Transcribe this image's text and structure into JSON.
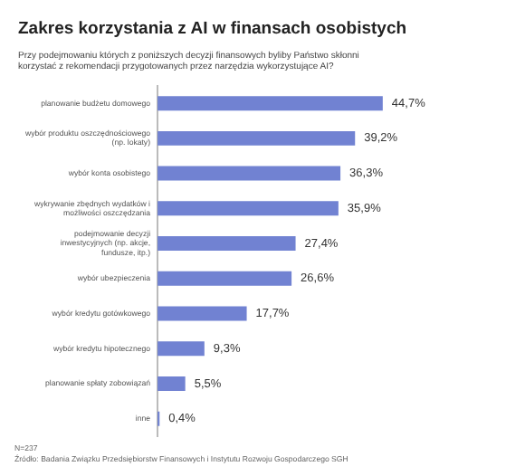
{
  "chart_data": {
    "type": "bar",
    "orientation": "horizontal",
    "title": "Zakres korzystania z AI w finansach osobistych",
    "subtitle": "Przy podejmowaniu których z poniższych decyzji finansowych byliby Państwo skłonni korzystać z rekomendacji przygotowanych przez narzędzia wykorzystujące AI?",
    "categories": [
      "planowanie budżetu domowego",
      "wybór produktu oszczędnościowego (np. lokaty)",
      "wybór konta osobistego",
      "wykrywanie zbędnych wydatków i możliwości oszczędzania",
      "podejmowanie decyzji inwestycyjnych (np. akcje, fundusze, itp.)",
      "wybór ubezpieczenia",
      "wybór kredytu gotówkowego",
      "wybór kredytu hipotecznego",
      "planowanie spłaty zobowiązań",
      "inne"
    ],
    "values": [
      44.7,
      39.2,
      36.3,
      35.9,
      27.4,
      26.6,
      17.7,
      9.3,
      5.5,
      0.4
    ],
    "value_labels": [
      "44,7%",
      "39,2%",
      "36,3%",
      "35,9%",
      "27,4%",
      "26,6%",
      "17,7%",
      "9,3%",
      "5,5%",
      "0,4%"
    ],
    "color": "#7182d2",
    "grid": false,
    "legend": false,
    "tick_labels": "y",
    "annotations": [
      "N=237",
      "Źródło: Badania Związku Przedsiębiorstw Finansowych i Instytutu Rozwoju Gospodarczego SGH"
    ]
  }
}
